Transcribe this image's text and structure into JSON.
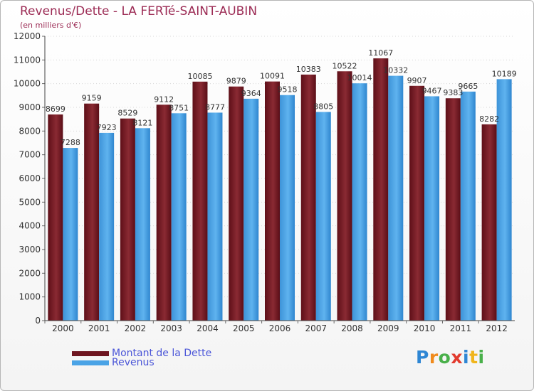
{
  "title": "Revenus/Dette - LA FERTé-SAINT-AUBIN",
  "subtitle": "(en milliers d'€)",
  "chart_data": {
    "type": "bar",
    "title": "Revenus/Dette - LA FERTé-SAINT-AUBIN",
    "ylabel": "(en milliers d'€)",
    "xlabel": "",
    "ylim": [
      0,
      12000
    ],
    "yticks": [
      0,
      1000,
      2000,
      3000,
      4000,
      5000,
      6000,
      7000,
      8000,
      9000,
      10000,
      11000,
      12000
    ],
    "categories": [
      "2000",
      "2001",
      "2002",
      "2003",
      "2004",
      "2005",
      "2006",
      "2007",
      "2008",
      "2009",
      "2010",
      "2011",
      "2012"
    ],
    "series": [
      {
        "name": "Montant de la Dette",
        "color": "#7a1a24",
        "values": [
          8699,
          9159,
          8529,
          9112,
          10085,
          9879,
          10091,
          10383,
          10522,
          11067,
          9907,
          9383,
          8282
        ]
      },
      {
        "name": "Revenus",
        "color": "#4aa3e6",
        "values": [
          7288,
          7923,
          8121,
          8751,
          8777,
          9364,
          9518,
          8805,
          10014,
          10332,
          9467,
          9665,
          10189
        ]
      }
    ],
    "legend_position": "bottom-left",
    "grid": true
  },
  "legend": [
    {
      "label": "Montant de la Dette",
      "color": "#6e1520"
    },
    {
      "label": "Revenus",
      "color": "#4aa3e6"
    }
  ],
  "logo": {
    "letters": [
      "P",
      "r",
      "o",
      "x",
      "i",
      "t",
      "i"
    ],
    "colors": [
      "#2e86d4",
      "#f08a1c",
      "#49b04a",
      "#e23b2e",
      "#2e86d4",
      "#f0b51c",
      "#49b04a"
    ]
  }
}
